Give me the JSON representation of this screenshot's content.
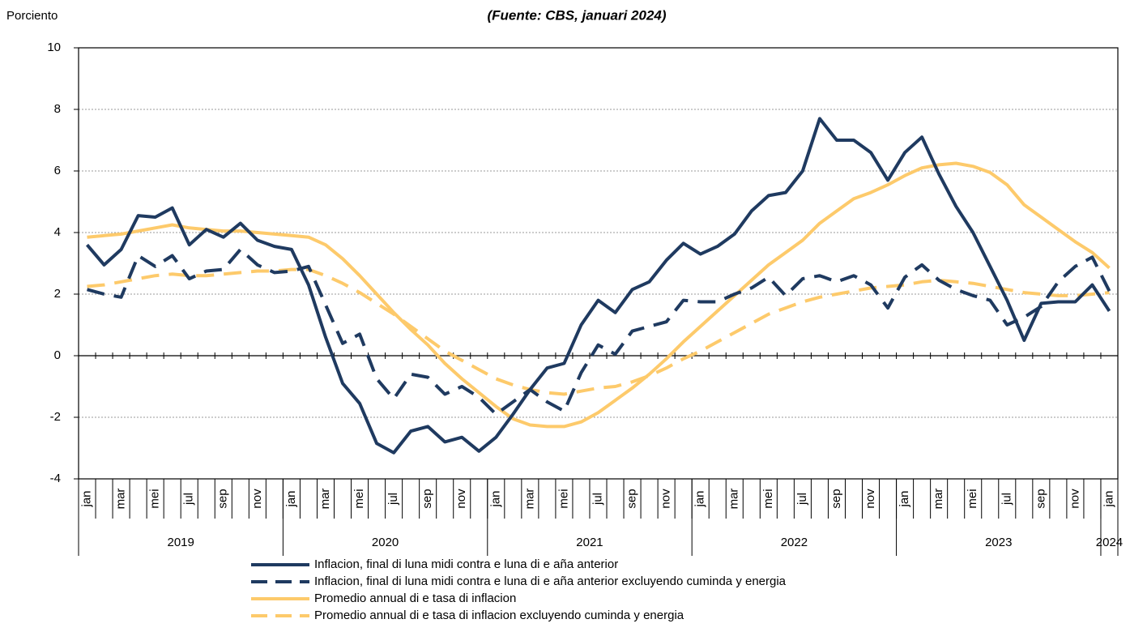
{
  "chart_data": {
    "type": "line",
    "title": "(Fuente: CBS, januari 2024)",
    "y_label": "Porciento",
    "categories": [
      "jan",
      null,
      "mar",
      null,
      "mei",
      null,
      "jul",
      null,
      "sep",
      null,
      "nov",
      null,
      "jan",
      null,
      "mar",
      null,
      "mei",
      null,
      "jul",
      null,
      "sep",
      null,
      "nov",
      null,
      "jan",
      null,
      "mar",
      null,
      "mei",
      null,
      "jul",
      null,
      "sep",
      null,
      "nov",
      null,
      "jan",
      null,
      "mar",
      null,
      "mei",
      null,
      "jul",
      null,
      "sep",
      null,
      "nov",
      null,
      "jan",
      null,
      "mar",
      null,
      "mei",
      null,
      "jul",
      null,
      "sep",
      null,
      "nov",
      null,
      "jan"
    ],
    "years": [
      "2019",
      "2020",
      "2021",
      "2022",
      "2023",
      "2024"
    ],
    "ylim": [
      -4,
      10
    ],
    "yticks": [
      -4,
      -2,
      0,
      2,
      4,
      6,
      8,
      10
    ],
    "grid": true,
    "series": [
      {
        "name": "Inflacion, final di luna midi contra e luna di e aña anterior",
        "color": "#1f3a60",
        "dashed": false,
        "values": [
          3.6,
          2.95,
          3.45,
          4.55,
          4.5,
          4.8,
          3.6,
          4.1,
          3.85,
          4.3,
          3.75,
          3.55,
          3.45,
          2.3,
          0.6,
          -0.9,
          -1.55,
          -2.85,
          -3.15,
          -2.45,
          -2.3,
          -2.8,
          -2.65,
          -3.1,
          -2.65,
          -1.9,
          -1.1,
          -0.4,
          -0.25,
          1.0,
          1.8,
          1.4,
          2.15,
          2.4,
          3.1,
          3.65,
          3.3,
          3.55,
          3.95,
          4.7,
          5.2,
          5.3,
          6.0,
          7.7,
          7.0,
          7.0,
          6.6,
          5.7,
          6.6,
          7.1,
          5.9,
          4.85,
          4.0,
          2.9,
          1.8,
          0.5,
          1.7,
          1.75,
          1.75,
          2.3,
          1.45
        ]
      },
      {
        "name": "Inflacion, final di luna midi contra e luna di e aña anterior excluyendo cuminda y energia",
        "color": "#1f3a60",
        "dashed": true,
        "values": [
          2.15,
          2.0,
          1.9,
          3.25,
          2.9,
          3.25,
          2.5,
          2.75,
          2.8,
          3.45,
          2.95,
          2.7,
          2.75,
          2.9,
          1.65,
          0.4,
          0.7,
          -0.75,
          -1.4,
          -0.6,
          -0.7,
          -1.25,
          -1.0,
          -1.35,
          -1.9,
          -1.5,
          -1.1,
          -1.5,
          -1.8,
          -0.55,
          0.35,
          0.05,
          0.8,
          0.95,
          1.1,
          1.8,
          1.75,
          1.75,
          2.0,
          2.2,
          2.55,
          1.95,
          2.5,
          2.6,
          2.4,
          2.6,
          2.3,
          1.55,
          2.55,
          2.95,
          2.45,
          2.15,
          1.95,
          1.8,
          1.0,
          1.25,
          1.6,
          2.4,
          2.9,
          3.2,
          2.1
        ]
      },
      {
        "name": "Promedio annual di e tasa di inflacion",
        "color": "#fdca6b",
        "dashed": false,
        "values": [
          3.85,
          3.9,
          3.95,
          4.05,
          4.15,
          4.25,
          4.15,
          4.1,
          4.05,
          4.05,
          4.0,
          3.95,
          3.9,
          3.85,
          3.6,
          3.15,
          2.6,
          2.0,
          1.4,
          0.85,
          0.35,
          -0.25,
          -0.75,
          -1.2,
          -1.65,
          -2.05,
          -2.25,
          -2.3,
          -2.3,
          -2.15,
          -1.85,
          -1.45,
          -1.05,
          -0.6,
          -0.1,
          0.45,
          0.95,
          1.45,
          1.95,
          2.45,
          2.95,
          3.35,
          3.75,
          4.3,
          4.7,
          5.1,
          5.3,
          5.55,
          5.85,
          6.1,
          6.2,
          6.25,
          6.15,
          5.95,
          5.55,
          4.9,
          4.5,
          4.1,
          3.7,
          3.35,
          2.85
        ]
      },
      {
        "name": "Promedio annual di e tasa di inflacion excluyendo cuminda y energia",
        "color": "#fdca6b",
        "dashed": true,
        "values": [
          2.25,
          2.3,
          2.4,
          2.5,
          2.6,
          2.65,
          2.6,
          2.6,
          2.65,
          2.7,
          2.75,
          2.75,
          2.8,
          2.8,
          2.6,
          2.35,
          2.05,
          1.7,
          1.35,
          0.95,
          0.55,
          0.15,
          -0.15,
          -0.45,
          -0.75,
          -0.95,
          -1.1,
          -1.2,
          -1.25,
          -1.15,
          -1.05,
          -1.0,
          -0.85,
          -0.65,
          -0.4,
          -0.1,
          0.15,
          0.45,
          0.75,
          1.05,
          1.35,
          1.55,
          1.75,
          1.9,
          2.0,
          2.1,
          2.2,
          2.25,
          2.3,
          2.4,
          2.45,
          2.4,
          2.35,
          2.25,
          2.15,
          2.05,
          2.0,
          1.95,
          1.95,
          2.0,
          2.05
        ]
      }
    ]
  }
}
